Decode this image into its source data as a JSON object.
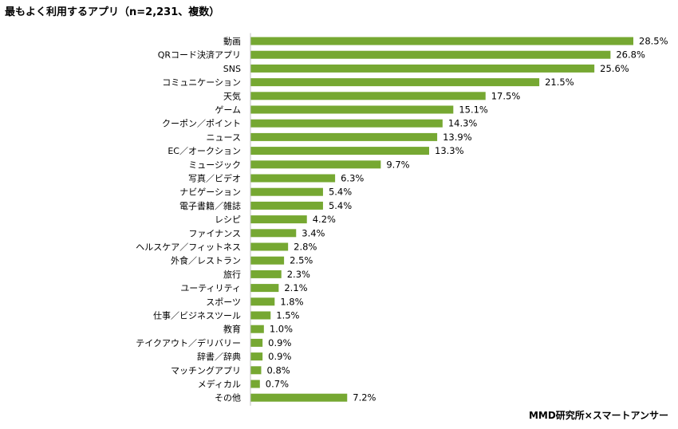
{
  "title": "最もよく利用するアプリ（n=2,231、複数）",
  "source": "MMD研究所×スマートアンサー",
  "colors": {
    "bar": "#76a832",
    "axis": "#bfbfbf"
  },
  "chart_data": {
    "type": "bar",
    "orientation": "horizontal",
    "categories": [
      "動画",
      "QRコード決済アプリ",
      "SNS",
      "コミュニケーション",
      "天気",
      "ゲーム",
      "クーポン／ポイント",
      "ニュース",
      "EC／オークション",
      "ミュージック",
      "写真／ビデオ",
      "ナビゲーション",
      "電子書籍／雑誌",
      "レシピ",
      "ファイナンス",
      "ヘルスケア／フィットネス",
      "外食／レストラン",
      "旅行",
      "ユーティリティ",
      "スポーツ",
      "仕事／ビジネスツール",
      "教育",
      "テイクアウト／デリバリー",
      "辞書／辞典",
      "マッチングアプリ",
      "メディカル",
      "その他"
    ],
    "values": [
      28.5,
      26.8,
      25.6,
      21.5,
      17.5,
      15.1,
      14.3,
      13.9,
      13.3,
      9.7,
      6.3,
      5.4,
      5.4,
      4.2,
      3.4,
      2.8,
      2.5,
      2.3,
      2.1,
      1.8,
      1.5,
      1.0,
      0.9,
      0.9,
      0.8,
      0.7,
      7.2
    ],
    "value_labels": [
      "28.5%",
      "26.8%",
      "25.6%",
      "21.5%",
      "17.5%",
      "15.1%",
      "14.3%",
      "13.9%",
      "13.3%",
      "9.7%",
      "6.3%",
      "5.4%",
      "5.4%",
      "4.2%",
      "3.4%",
      "2.8%",
      "2.5%",
      "2.3%",
      "2.1%",
      "1.8%",
      "1.5%",
      "1.0%",
      "0.9%",
      "0.9%",
      "0.8%",
      "0.7%",
      "7.2%"
    ],
    "unit": "%",
    "xlim": [
      0,
      28.5
    ],
    "grid": false,
    "legend": "none"
  }
}
